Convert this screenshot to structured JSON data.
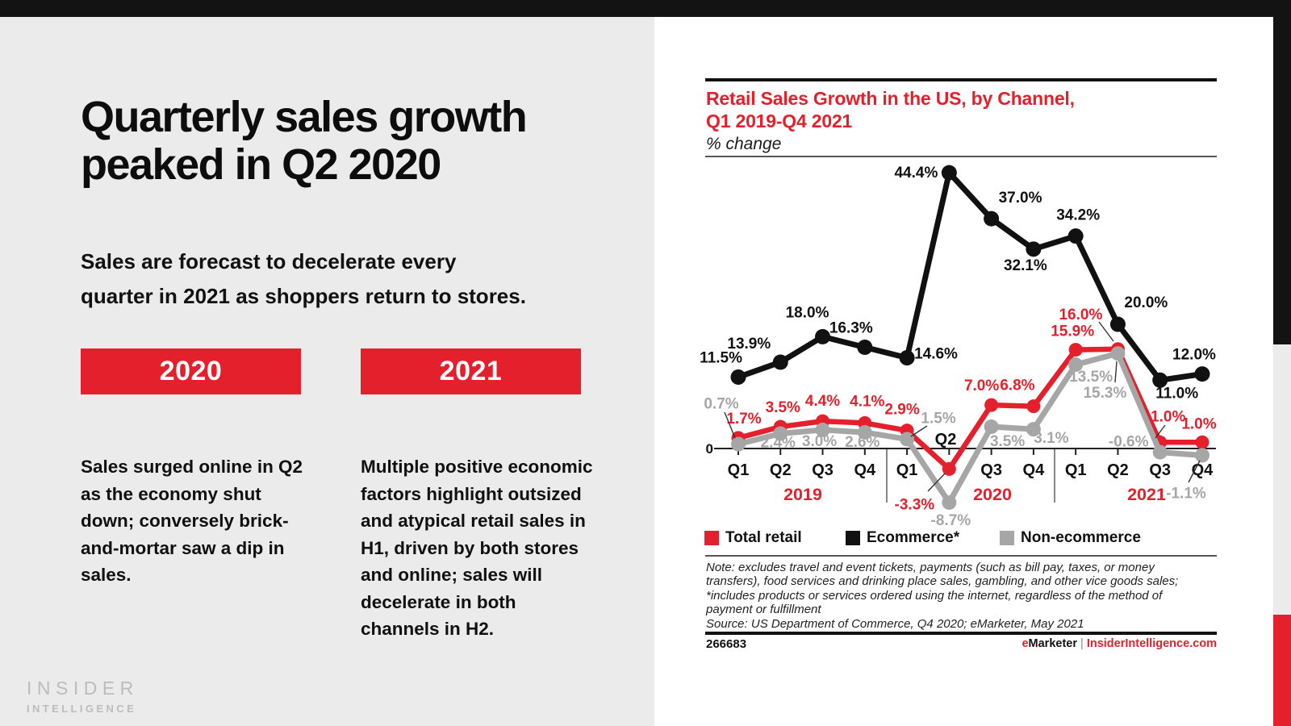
{
  "page": {
    "bg_color": "#ebebeb",
    "top_bar_color": "#131313",
    "accent_red": "#e4202c"
  },
  "left": {
    "title_line1": "Quarterly sales growth",
    "title_line2": "peaked in Q2 2020",
    "subtitle_line1": "Sales are forecast to decelerate every",
    "subtitle_line2": "quarter in 2021 as shoppers return to stores.",
    "cards": [
      {
        "year": "2020",
        "body": "Sales surged online in Q2 as the economy shut down; conversely brick-and-mortar saw a dip in sales."
      },
      {
        "year": "2021",
        "body": "Multiple positive economic factors highlight outsized and atypical retail sales in H1, driven by both stores and online; sales will decelerate in both channels in H2."
      }
    ],
    "logo_line1": "INSIDER",
    "logo_line2": "INTELLIGENCE"
  },
  "chart": {
    "title_line1": "Retail Sales Growth in the US, by Channel,",
    "title_line2": "Q1 2019-Q4 2021",
    "subtitle": "% change",
    "legend": [
      {
        "label": "Total retail",
        "color": "#e4202c"
      },
      {
        "label": "Ecommerce*",
        "color": "#111111"
      },
      {
        "label": "Non-ecommerce",
        "color": "#a6a6a6"
      }
    ],
    "note_lines": [
      "Note: excludes travel and event tickets, payments (such as bill pay, taxes, or money",
      "transfers), food services and drinking place sales, gambling, and other vice goods sales;",
      "*includes products or services ordered using the internet, regardless of the method of",
      "payment or fulfillment",
      "Source: US Department of Commerce, Q4 2020; eMarketer, May 2021"
    ],
    "chart_id": "266683",
    "footer_brand": {
      "e": "e",
      "marketer": "Marketer",
      "divider": "|",
      "site": "InsiderIntelligence.com"
    }
  },
  "chart_data": {
    "type": "line",
    "title": "Retail Sales Growth in the US, by Channel, Q1 2019-Q4 2021",
    "ylabel": "% change",
    "zero_label": "0",
    "grid": false,
    "legend_position": "bottom",
    "ylim": [
      -12,
      48
    ],
    "x_labels": [
      "Q1",
      "Q2",
      "Q3",
      "Q4",
      "Q1",
      "Q2",
      "Q3",
      "Q4",
      "Q1",
      "Q2",
      "Q3",
      "Q4"
    ],
    "year_groups": [
      {
        "label": "2019",
        "quarters": [
          0,
          3
        ]
      },
      {
        "label": "2020",
        "quarters": [
          4,
          7
        ]
      },
      {
        "label": "2021",
        "quarters": [
          8,
          11
        ]
      }
    ],
    "series": [
      {
        "name": "Total retail",
        "color": "#e4202c",
        "values": [
          1.7,
          3.5,
          4.4,
          4.1,
          2.9,
          -3.3,
          7.0,
          6.8,
          15.9,
          16.0,
          1.0,
          1.0
        ]
      },
      {
        "name": "Ecommerce*",
        "color": "#111111",
        "values": [
          11.5,
          13.9,
          18.0,
          16.3,
          14.6,
          44.4,
          37.0,
          32.1,
          34.2,
          20.0,
          11.0,
          12.0
        ]
      },
      {
        "name": "Non-ecommerce",
        "color": "#a6a6a6",
        "values": [
          0.7,
          2.4,
          3.0,
          2.6,
          1.5,
          -8.7,
          3.5,
          3.1,
          13.5,
          15.3,
          -0.6,
          -1.1
        ]
      }
    ]
  }
}
